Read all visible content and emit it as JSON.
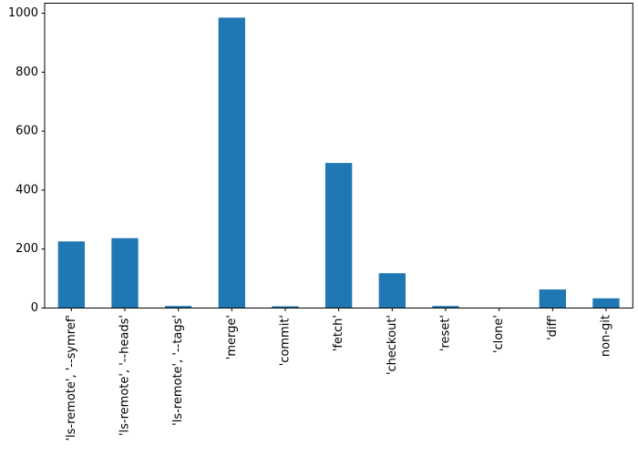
{
  "figure": {
    "background": "#ffffff"
  },
  "chart_data": {
    "type": "bar",
    "title": "",
    "xlabel": "",
    "ylabel": "",
    "categories": [
      "'ls-remote', '--symref'",
      "'ls-remote', '--heads'",
      "'ls-remote', '--tags'",
      "'merge'",
      "'commit'",
      "'fetch'",
      "'checkout'",
      "'reset'",
      "'clone'",
      "'diff'",
      "non-git"
    ],
    "values": [
      226,
      237,
      7,
      985,
      6,
      492,
      118,
      7,
      1,
      63,
      33
    ],
    "y_ticks": [
      0,
      200,
      400,
      600,
      800,
      1000
    ],
    "ylim": [
      0,
      1034
    ],
    "x_tick_rotation_deg": 90,
    "grid": false,
    "legend": false,
    "bar_width_fraction": 0.5,
    "bar_color": "#1f77b4",
    "axis_color": "#000000",
    "tick_label_color": "#000000"
  }
}
